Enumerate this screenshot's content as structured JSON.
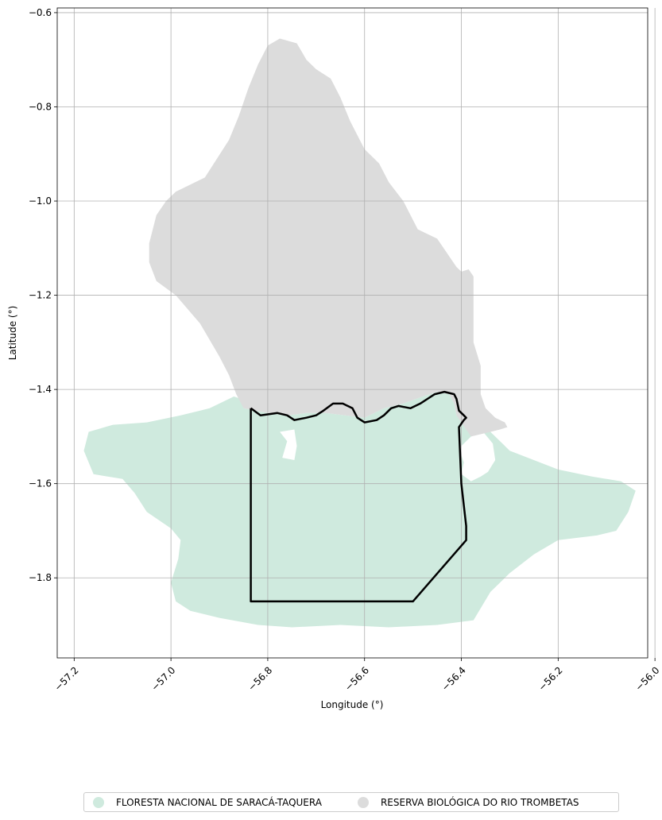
{
  "chart_data": {
    "type": "map",
    "xlabel": "Longitude (°)",
    "ylabel": "Latitude (°)",
    "xlim": [
      -57.235,
      -56.015
    ],
    "ylim": [
      -1.97,
      -0.59
    ],
    "xticks": [
      -57.2,
      -57.0,
      -56.8,
      -56.6,
      -56.4,
      -56.2,
      -56.0
    ],
    "xtick_labels": [
      "−57.2",
      "−57.0",
      "−56.8",
      "−56.6",
      "−56.4",
      "−56.2",
      "−56.0"
    ],
    "yticks": [
      -0.6,
      -0.8,
      -1.0,
      -1.2,
      -1.4,
      -1.6,
      -1.8
    ],
    "ytick_labels": [
      "−0.6",
      "−0.8",
      "−1.0",
      "−1.2",
      "−1.4",
      "−1.6",
      "−1.8"
    ],
    "grid": true,
    "legend_position": "bottom-center",
    "layers": [
      {
        "name": "FLORESTA NACIONAL DE SARACÁ-TAQUERA",
        "color": "#cfeade",
        "polygon": [
          [
            -57.18,
            -1.53
          ],
          [
            -57.17,
            -1.49
          ],
          [
            -57.12,
            -1.475
          ],
          [
            -57.05,
            -1.47
          ],
          [
            -56.98,
            -1.455
          ],
          [
            -56.92,
            -1.44
          ],
          [
            -56.87,
            -1.415
          ],
          [
            -56.855,
            -1.42
          ],
          [
            -56.85,
            -1.44
          ],
          [
            -56.8,
            -1.45
          ],
          [
            -56.76,
            -1.455
          ],
          [
            -56.72,
            -1.45
          ],
          [
            -56.68,
            -1.45
          ],
          [
            -56.64,
            -1.455
          ],
          [
            -56.6,
            -1.46
          ],
          [
            -56.56,
            -1.44
          ],
          [
            -56.52,
            -1.43
          ],
          [
            -56.48,
            -1.415
          ],
          [
            -56.45,
            -1.405
          ],
          [
            -56.425,
            -1.41
          ],
          [
            -56.415,
            -1.43
          ],
          [
            -56.41,
            -1.455
          ],
          [
            -56.39,
            -1.46
          ],
          [
            -56.37,
            -1.475
          ],
          [
            -56.34,
            -1.49
          ],
          [
            -56.3,
            -1.53
          ],
          [
            -56.2,
            -1.57
          ],
          [
            -56.13,
            -1.585
          ],
          [
            -56.07,
            -1.595
          ],
          [
            -56.04,
            -1.615
          ],
          [
            -56.055,
            -1.66
          ],
          [
            -56.08,
            -1.7
          ],
          [
            -56.12,
            -1.71
          ],
          [
            -56.2,
            -1.72
          ],
          [
            -56.25,
            -1.75
          ],
          [
            -56.3,
            -1.79
          ],
          [
            -56.34,
            -1.83
          ],
          [
            -56.375,
            -1.89
          ],
          [
            -56.45,
            -1.9
          ],
          [
            -56.55,
            -1.905
          ],
          [
            -56.65,
            -1.9
          ],
          [
            -56.75,
            -1.905
          ],
          [
            -56.82,
            -1.9
          ],
          [
            -56.9,
            -1.885
          ],
          [
            -56.96,
            -1.87
          ],
          [
            -56.99,
            -1.85
          ],
          [
            -57.0,
            -1.81
          ],
          [
            -56.985,
            -1.76
          ],
          [
            -56.98,
            -1.72
          ],
          [
            -57.0,
            -1.695
          ],
          [
            -57.05,
            -1.66
          ],
          [
            -57.075,
            -1.62
          ],
          [
            -57.1,
            -1.59
          ],
          [
            -57.16,
            -1.58
          ]
        ],
        "holes": [
          [
            [
              -56.775,
              -1.49
            ],
            [
              -56.76,
              -1.51
            ],
            [
              -56.77,
              -1.545
            ],
            [
              -56.745,
              -1.55
            ],
            [
              -56.74,
              -1.52
            ],
            [
              -56.745,
              -1.485
            ]
          ],
          [
            [
              -56.355,
              -1.49
            ],
            [
              -56.335,
              -1.515
            ],
            [
              -56.33,
              -1.55
            ],
            [
              -56.345,
              -1.575
            ],
            [
              -56.36,
              -1.585
            ],
            [
              -56.38,
              -1.595
            ],
            [
              -56.4,
              -1.58
            ],
            [
              -56.395,
              -1.555
            ],
            [
              -56.405,
              -1.525
            ],
            [
              -56.38,
              -1.5
            ]
          ]
        ]
      },
      {
        "name": "RESERVA BIOLÓGICA DO RIO TROMBETAS",
        "color": "#dcdcdc",
        "polygon": [
          [
            -56.8,
            -0.67
          ],
          [
            -56.775,
            -0.655
          ],
          [
            -56.74,
            -0.665
          ],
          [
            -56.72,
            -0.7
          ],
          [
            -56.7,
            -0.72
          ],
          [
            -56.67,
            -0.74
          ],
          [
            -56.65,
            -0.78
          ],
          [
            -56.63,
            -0.83
          ],
          [
            -56.6,
            -0.89
          ],
          [
            -56.57,
            -0.92
          ],
          [
            -56.55,
            -0.96
          ],
          [
            -56.52,
            -1.0
          ],
          [
            -56.49,
            -1.06
          ],
          [
            -56.47,
            -1.07
          ],
          [
            -56.45,
            -1.08
          ],
          [
            -56.43,
            -1.11
          ],
          [
            -56.41,
            -1.14
          ],
          [
            -56.4,
            -1.15
          ],
          [
            -56.385,
            -1.145
          ],
          [
            -56.375,
            -1.16
          ],
          [
            -56.375,
            -1.3
          ],
          [
            -56.36,
            -1.35
          ],
          [
            -56.36,
            -1.41
          ],
          [
            -56.35,
            -1.44
          ],
          [
            -56.33,
            -1.46
          ],
          [
            -56.31,
            -1.47
          ],
          [
            -56.305,
            -1.48
          ],
          [
            -56.32,
            -1.485
          ],
          [
            -56.34,
            -1.49
          ],
          [
            -56.38,
            -1.5
          ],
          [
            -56.41,
            -1.455
          ],
          [
            -56.415,
            -1.43
          ],
          [
            -56.425,
            -1.41
          ],
          [
            -56.45,
            -1.405
          ],
          [
            -56.48,
            -1.415
          ],
          [
            -56.52,
            -1.43
          ],
          [
            -56.56,
            -1.44
          ],
          [
            -56.6,
            -1.46
          ],
          [
            -56.64,
            -1.455
          ],
          [
            -56.68,
            -1.45
          ],
          [
            -56.72,
            -1.45
          ],
          [
            -56.76,
            -1.455
          ],
          [
            -56.8,
            -1.45
          ],
          [
            -56.85,
            -1.44
          ],
          [
            -56.865,
            -1.41
          ],
          [
            -56.88,
            -1.37
          ],
          [
            -56.9,
            -1.33
          ],
          [
            -56.94,
            -1.26
          ],
          [
            -56.99,
            -1.2
          ],
          [
            -57.03,
            -1.17
          ],
          [
            -57.045,
            -1.13
          ],
          [
            -57.045,
            -1.09
          ],
          [
            -57.03,
            -1.03
          ],
          [
            -57.01,
            -1.0
          ],
          [
            -56.99,
            -0.98
          ],
          [
            -56.93,
            -0.95
          ],
          [
            -56.88,
            -0.87
          ],
          [
            -56.86,
            -0.82
          ],
          [
            -56.84,
            -0.76
          ],
          [
            -56.82,
            -0.71
          ]
        ]
      },
      {
        "name": "outline",
        "color": "#000000",
        "polyline": [
          [
            -56.835,
            -1.44
          ],
          [
            -56.815,
            -1.455
          ],
          [
            -56.78,
            -1.45
          ],
          [
            -56.76,
            -1.455
          ],
          [
            -56.745,
            -1.465
          ],
          [
            -56.72,
            -1.46
          ],
          [
            -56.7,
            -1.455
          ],
          [
            -56.685,
            -1.445
          ],
          [
            -56.665,
            -1.43
          ],
          [
            -56.645,
            -1.43
          ],
          [
            -56.625,
            -1.44
          ],
          [
            -56.615,
            -1.46
          ],
          [
            -56.6,
            -1.47
          ],
          [
            -56.575,
            -1.465
          ],
          [
            -56.56,
            -1.455
          ],
          [
            -56.545,
            -1.44
          ],
          [
            -56.53,
            -1.435
          ],
          [
            -56.505,
            -1.44
          ],
          [
            -56.485,
            -1.43
          ],
          [
            -56.47,
            -1.42
          ],
          [
            -56.455,
            -1.41
          ],
          [
            -56.435,
            -1.405
          ],
          [
            -56.415,
            -1.41
          ],
          [
            -56.41,
            -1.42
          ],
          [
            -56.405,
            -1.445
          ],
          [
            -56.395,
            -1.455
          ],
          [
            -56.39,
            -1.46
          ],
          [
            -56.395,
            -1.465
          ],
          [
            -56.405,
            -1.48
          ],
          [
            -56.4,
            -1.6
          ],
          [
            -56.39,
            -1.69
          ],
          [
            -56.39,
            -1.72
          ],
          [
            -56.5,
            -1.85
          ],
          [
            -56.835,
            -1.85
          ],
          [
            -56.835,
            -1.44
          ]
        ]
      }
    ]
  },
  "legend": {
    "items": [
      {
        "label": "FLORESTA NACIONAL DE SARACÁ-TAQUERA",
        "color": "#cfeade"
      },
      {
        "label": "RESERVA BIOLÓGICA DO RIO TROMBETAS",
        "color": "#dcdcdc"
      }
    ]
  }
}
